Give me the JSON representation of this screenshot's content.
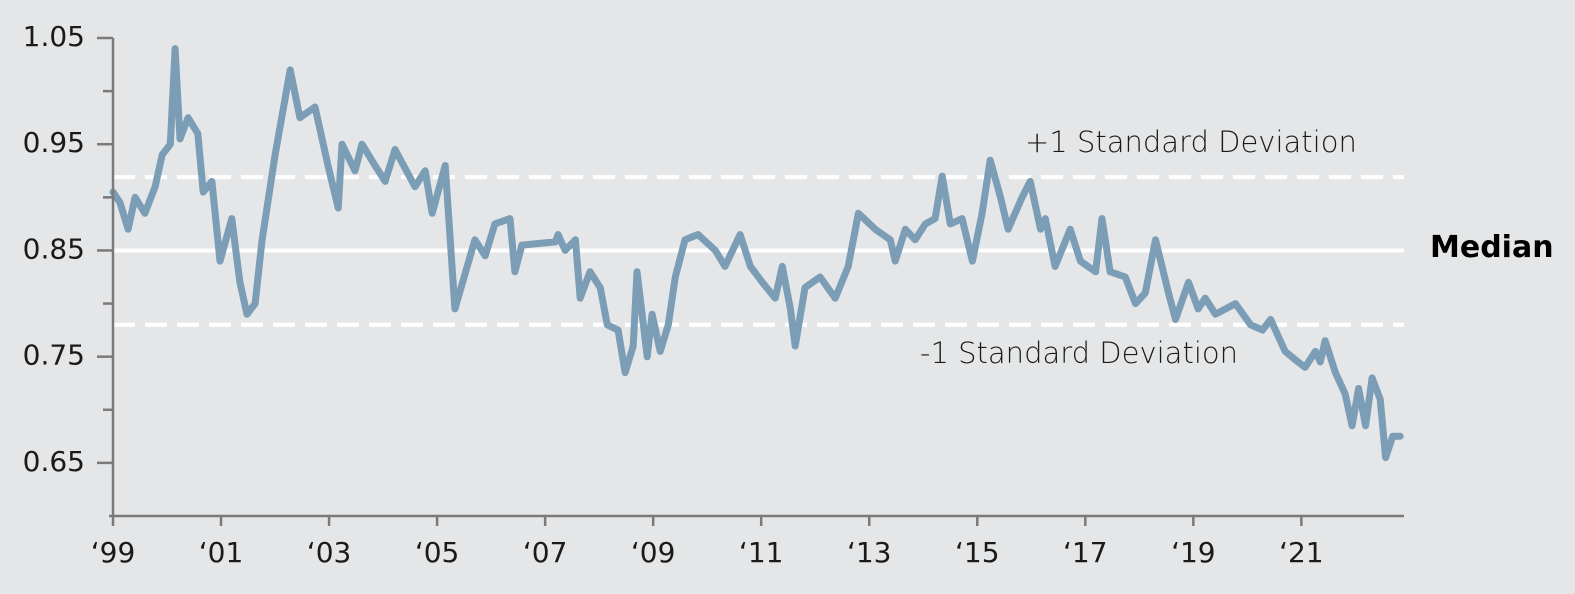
{
  "chart_data": {
    "type": "line",
    "x": [
      1999.0,
      1999.13,
      1999.28,
      1999.41,
      1999.59,
      1999.78,
      1999.91,
      2000.06,
      2000.15,
      2000.24,
      2000.39,
      2000.57,
      2000.67,
      2000.83,
      2000.98,
      2001.2,
      2001.35,
      2001.48,
      2001.63,
      2001.76,
      2002.0,
      2002.28,
      2002.46,
      2002.74,
      2002.98,
      2003.17,
      2003.24,
      2003.48,
      2003.61,
      2003.85,
      2004.04,
      2004.22,
      2004.59,
      2004.78,
      2004.91,
      2005.15,
      2005.33,
      2005.7,
      2005.89,
      2006.07,
      2006.35,
      2006.44,
      2006.57,
      2007.19,
      2007.24,
      2007.37,
      2007.56,
      2007.65,
      2007.83,
      2008.02,
      2008.15,
      2008.35,
      2008.48,
      2008.63,
      2008.7,
      2008.89,
      2008.98,
      2009.13,
      2009.28,
      2009.41,
      2009.59,
      2009.83,
      2010.15,
      2010.33,
      2010.61,
      2010.8,
      2011.02,
      2011.26,
      2011.39,
      2011.54,
      2011.63,
      2011.81,
      2012.09,
      2012.37,
      2012.61,
      2012.8,
      2013.11,
      2013.39,
      2013.48,
      2013.67,
      2013.85,
      2014.04,
      2014.22,
      2014.35,
      2014.5,
      2014.72,
      2014.91,
      2015.09,
      2015.24,
      2015.43,
      2015.57,
      2015.83,
      2015.98,
      2016.17,
      2016.26,
      2016.44,
      2016.72,
      2016.91,
      2017.19,
      2017.31,
      2017.46,
      2017.74,
      2017.93,
      2018.11,
      2018.3,
      2018.54,
      2018.67,
      2018.91,
      2019.09,
      2019.22,
      2019.41,
      2019.78,
      2020.06,
      2020.28,
      2020.43,
      2020.7,
      2020.94,
      2021.07,
      2021.26,
      2021.35,
      2021.44,
      2021.63,
      2021.81,
      2021.94,
      2022.06,
      2022.19,
      2022.31,
      2022.46,
      2022.56,
      2022.69,
      2022.83
    ],
    "series": [
      {
        "color": "#7b9db6",
        "values": [
          0.905,
          0.895,
          0.87,
          0.9,
          0.885,
          0.91,
          0.94,
          0.95,
          1.04,
          0.955,
          0.975,
          0.96,
          0.905,
          0.915,
          0.84,
          0.88,
          0.82,
          0.79,
          0.8,
          0.86,
          0.94,
          1.02,
          0.975,
          0.985,
          0.93,
          0.89,
          0.95,
          0.925,
          0.95,
          0.93,
          0.915,
          0.945,
          0.91,
          0.925,
          0.885,
          0.93,
          0.795,
          0.86,
          0.845,
          0.875,
          0.88,
          0.83,
          0.855,
          0.858,
          0.865,
          0.85,
          0.86,
          0.805,
          0.83,
          0.815,
          0.78,
          0.775,
          0.735,
          0.76,
          0.83,
          0.75,
          0.79,
          0.755,
          0.78,
          0.825,
          0.86,
          0.865,
          0.85,
          0.835,
          0.865,
          0.835,
          0.82,
          0.805,
          0.835,
          0.795,
          0.76,
          0.815,
          0.825,
          0.805,
          0.835,
          0.885,
          0.87,
          0.86,
          0.84,
          0.87,
          0.86,
          0.875,
          0.88,
          0.92,
          0.875,
          0.88,
          0.84,
          0.885,
          0.935,
          0.9,
          0.87,
          0.9,
          0.915,
          0.87,
          0.88,
          0.835,
          0.87,
          0.84,
          0.83,
          0.88,
          0.83,
          0.825,
          0.8,
          0.81,
          0.86,
          0.81,
          0.785,
          0.82,
          0.795,
          0.805,
          0.79,
          0.8,
          0.78,
          0.775,
          0.785,
          0.755,
          0.745,
          0.74,
          0.755,
          0.745,
          0.765,
          0.735,
          0.715,
          0.685,
          0.72,
          0.685,
          0.73,
          0.71,
          0.655,
          0.675,
          0.675
        ]
      }
    ],
    "xlim": [
      1999,
      2022.9
    ],
    "xticks": [
      {
        "value": 1999,
        "label": "‘99"
      },
      {
        "value": 2001,
        "label": "‘01"
      },
      {
        "value": 2003,
        "label": "‘03"
      },
      {
        "value": 2005,
        "label": "‘05"
      },
      {
        "value": 2007,
        "label": "‘07"
      },
      {
        "value": 2009,
        "label": "‘09"
      },
      {
        "value": 2011,
        "label": "‘11"
      },
      {
        "value": 2013,
        "label": "‘13"
      },
      {
        "value": 2015,
        "label": "‘15"
      },
      {
        "value": 2017,
        "label": "‘17"
      },
      {
        "value": 2019,
        "label": "‘19"
      },
      {
        "value": 2021,
        "label": "‘21"
      }
    ],
    "ylim": [
      0.6,
      1.05
    ],
    "yticks": [
      0.65,
      0.75,
      0.85,
      0.95,
      1.05
    ],
    "yminor_ticks": [
      0.7,
      0.8,
      0.9,
      1.0
    ],
    "reference_lines": [
      {
        "label": "+1 Standard Deviation",
        "value": 0.919,
        "style": "dashed"
      },
      {
        "label": "Median",
        "value": 0.85,
        "style": "solid"
      },
      {
        "label": "-1 Standard Deviation",
        "value": 0.78,
        "style": "dashed"
      }
    ]
  }
}
